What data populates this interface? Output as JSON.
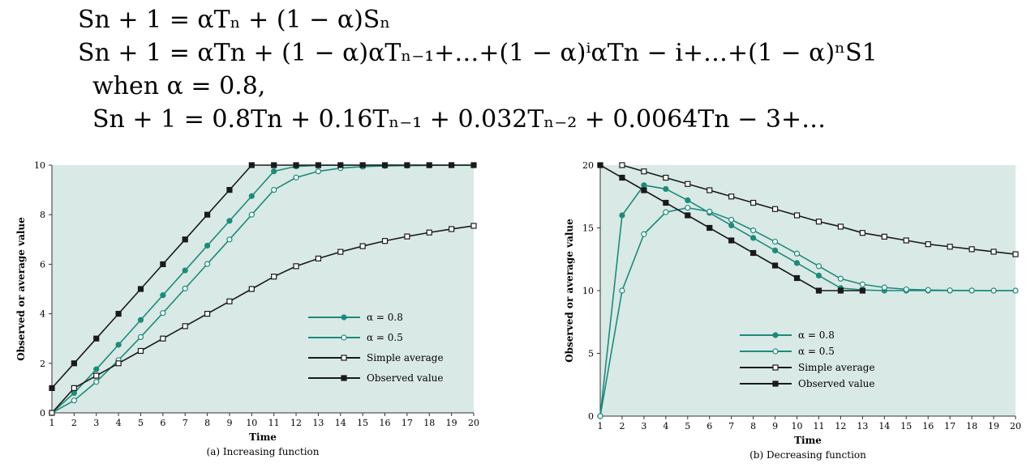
{
  "formulas": {
    "line1": "Sn + 1 = αTₙ + (1 − α)Sₙ",
    "line2": "Sn + 1 = αTn + (1 − α)αTₙ₋₁+…+(1 − α)ⁱαTn − i+…+(1 − α)ⁿS1",
    "line3": "when α = 0.8,",
    "line4": "Sn + 1 = 0.8Tn + 0.16Tₙ₋₁ + 0.032Tₙ₋₂ + 0.0064Tn − 3+…"
  },
  "colors": {
    "background": "#d9e9e6",
    "teal": "#1e8a7a",
    "black": "#1a1a1a"
  },
  "chart_data": [
    {
      "type": "line",
      "caption": "(a) Increasing function",
      "xlabel": "Time",
      "ylabel": "Observed or average value",
      "xlim": [
        1,
        20
      ],
      "ylim": [
        0,
        10
      ],
      "yticks": [
        0,
        2,
        4,
        6,
        8,
        10
      ],
      "legend_position": "bottom-right",
      "x": [
        1,
        2,
        3,
        4,
        5,
        6,
        7,
        8,
        9,
        10,
        11,
        12,
        13,
        14,
        15,
        16,
        17,
        18,
        19,
        20
      ],
      "series": [
        {
          "name": "α = 0.8",
          "marker": "filled-circle",
          "color": "#1e8a7a",
          "values": [
            0,
            0.8,
            1.76,
            2.75,
            3.75,
            4.75,
            5.75,
            6.75,
            7.75,
            8.75,
            9.75,
            9.95,
            9.99,
            10,
            10,
            10,
            10,
            10,
            10,
            10
          ]
        },
        {
          "name": "α = 0.5",
          "marker": "open-circle",
          "color": "#1e8a7a",
          "values": [
            0,
            0.5,
            1.25,
            2.13,
            3.06,
            4.03,
            5.02,
            6.01,
            7.0,
            8.0,
            9.0,
            9.5,
            9.75,
            9.88,
            9.94,
            9.97,
            9.98,
            9.99,
            10,
            10
          ]
        },
        {
          "name": "Simple average",
          "marker": "open-square",
          "color": "#1a1a1a",
          "values": [
            0,
            1,
            1.5,
            2,
            2.5,
            3,
            3.5,
            4,
            4.5,
            5,
            5.5,
            5.92,
            6.23,
            6.5,
            6.73,
            6.94,
            7.12,
            7.28,
            7.42,
            7.55
          ]
        },
        {
          "name": "Observed value",
          "marker": "filled-square",
          "color": "#1a1a1a",
          "values": [
            1,
            2,
            3,
            4,
            5,
            6,
            7,
            8,
            9,
            10,
            10,
            10,
            10,
            10,
            10,
            10,
            10,
            10,
            10,
            10
          ]
        }
      ]
    },
    {
      "type": "line",
      "caption": "(b) Decreasing function",
      "xlabel": "Time",
      "ylabel": "Observed or average value",
      "xlim": [
        1,
        20
      ],
      "ylim": [
        0,
        20
      ],
      "yticks": [
        0,
        5,
        10,
        15,
        20
      ],
      "legend_position": "bottom-center",
      "x": [
        1,
        2,
        3,
        4,
        5,
        6,
        7,
        8,
        9,
        10,
        11,
        12,
        13,
        14,
        15,
        16,
        17,
        18,
        19,
        20
      ],
      "series": [
        {
          "name": "α = 0.8",
          "marker": "filled-circle",
          "color": "#1e8a7a",
          "values": [
            0,
            16,
            18.4,
            18.1,
            17.2,
            16.2,
            15.2,
            14.2,
            13.2,
            12.2,
            11.2,
            10.2,
            10.05,
            10.0,
            10,
            10,
            10,
            10,
            10,
            10
          ]
        },
        {
          "name": "α = 0.5",
          "marker": "open-circle",
          "color": "#1e8a7a",
          "values": [
            0,
            10,
            14.5,
            16.25,
            16.6,
            16.3,
            15.65,
            14.8,
            13.9,
            12.95,
            11.95,
            10.95,
            10.5,
            10.25,
            10.1,
            10.05,
            10.02,
            10.01,
            10,
            10
          ]
        },
        {
          "name": "Simple average",
          "marker": "open-square",
          "color": "#1a1a1a",
          "values": [
            null,
            20,
            19.5,
            19,
            18.5,
            18,
            17.5,
            17,
            16.5,
            16,
            15.5,
            15.1,
            14.6,
            14.3,
            14.0,
            13.7,
            13.5,
            13.3,
            13.1,
            12.9
          ]
        },
        {
          "name": "Observed value",
          "marker": "filled-square",
          "color": "#1a1a1a",
          "values": [
            20,
            19,
            18,
            17,
            16,
            15,
            14,
            13,
            12,
            11,
            10,
            10,
            10,
            null,
            null,
            null,
            null,
            null,
            null,
            null
          ]
        }
      ]
    }
  ]
}
